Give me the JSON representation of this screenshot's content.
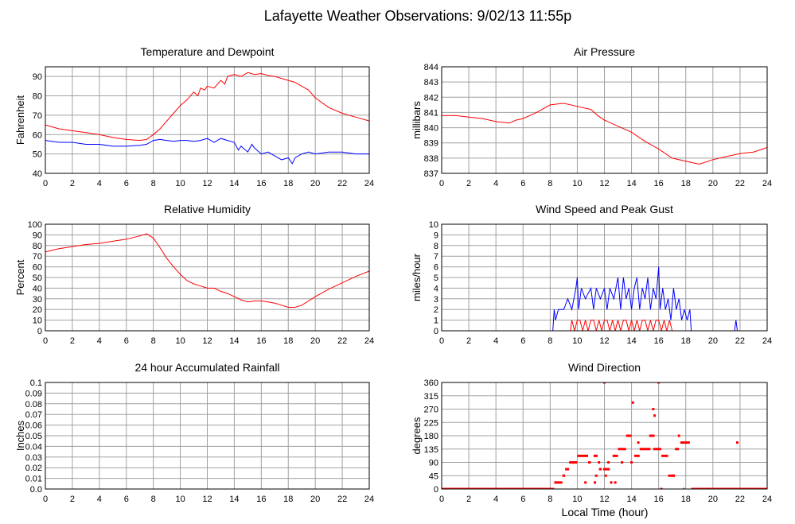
{
  "page": {
    "title": "Lafayette Weather Observations: 9/02/13 11:55p"
  },
  "chart_data": [
    {
      "id": "temp",
      "type": "line",
      "title": "Temperature and Dewpoint",
      "xlabel": "",
      "ylabel": "Fahrenheit",
      "xlim": [
        0,
        24
      ],
      "ylim": [
        40,
        95
      ],
      "yticks": [
        40,
        50,
        60,
        70,
        80,
        90
      ],
      "xticks": [
        0,
        2,
        4,
        6,
        8,
        10,
        12,
        14,
        16,
        18,
        20,
        22,
        24
      ],
      "series": [
        {
          "color": "#ff0000",
          "x": [
            0,
            1,
            2,
            3,
            4,
            5,
            6,
            7,
            7.5,
            8,
            8.5,
            9,
            9.5,
            10,
            10.5,
            11,
            11.3,
            11.5,
            11.8,
            12,
            12.5,
            13,
            13.3,
            13.5,
            14,
            14.5,
            15,
            15.5,
            16,
            16.5,
            17,
            17.5,
            18,
            18.5,
            19,
            19.5,
            20,
            21,
            22,
            23,
            24
          ],
          "y": [
            65,
            63,
            62,
            61,
            60,
            58.5,
            57.5,
            57,
            57.5,
            60,
            63,
            67,
            71,
            75,
            78,
            82,
            80,
            84,
            83,
            85,
            84,
            88,
            86,
            90,
            91,
            90,
            92,
            91,
            91.5,
            90.5,
            90,
            89,
            88,
            87,
            85,
            83,
            79,
            74,
            71,
            69,
            67
          ]
        },
        {
          "color": "#0000ff",
          "x": [
            0,
            1,
            2,
            3,
            4,
            5,
            6,
            7,
            7.5,
            8,
            8.5,
            9,
            9.5,
            10,
            10.5,
            11,
            11.5,
            12,
            12.5,
            13,
            13.5,
            14,
            14.3,
            14.5,
            15,
            15.3,
            15.5,
            16,
            16.5,
            17,
            17.5,
            18,
            18.3,
            18.5,
            19,
            19.5,
            20,
            21,
            22,
            23,
            24
          ],
          "y": [
            57,
            56,
            56,
            55,
            55,
            54,
            54,
            54.5,
            55,
            57,
            57.5,
            57,
            56.5,
            57,
            57,
            56.5,
            57,
            58,
            56,
            58,
            57,
            56,
            52,
            54,
            51,
            55,
            53,
            50,
            51,
            49,
            47,
            48,
            45,
            48,
            50,
            51,
            50,
            51,
            51,
            50,
            50
          ]
        }
      ]
    },
    {
      "id": "pressure",
      "type": "line",
      "title": "Air Pressure",
      "xlabel": "",
      "ylabel": "millibars",
      "xlim": [
        0,
        24
      ],
      "ylim": [
        837,
        844
      ],
      "yticks": [
        837,
        838,
        839,
        840,
        841,
        842,
        843,
        844
      ],
      "xticks": [
        0,
        2,
        4,
        6,
        8,
        10,
        12,
        14,
        16,
        18,
        20,
        22,
        24
      ],
      "series": [
        {
          "color": "#ff0000",
          "x": [
            0,
            1,
            2,
            3,
            4,
            5,
            5.5,
            6,
            7,
            8,
            9,
            10,
            11,
            11.5,
            12,
            13,
            14,
            15,
            16,
            17,
            18,
            19,
            20,
            21,
            22,
            23,
            24
          ],
          "y": [
            840.8,
            840.8,
            840.7,
            840.6,
            840.4,
            840.3,
            840.5,
            840.6,
            841.0,
            841.5,
            841.6,
            841.4,
            841.2,
            840.8,
            840.5,
            840.1,
            839.7,
            839.1,
            838.6,
            838.0,
            837.8,
            837.6,
            837.9,
            838.1,
            838.3,
            838.4,
            838.7
          ]
        }
      ]
    },
    {
      "id": "humidity",
      "type": "line",
      "title": "Relative Humidity",
      "xlabel": "",
      "ylabel": "Percent",
      "xlim": [
        0,
        24
      ],
      "ylim": [
        0,
        100
      ],
      "yticks": [
        0,
        10,
        20,
        30,
        40,
        50,
        60,
        70,
        80,
        90,
        100
      ],
      "xticks": [
        0,
        2,
        4,
        6,
        8,
        10,
        12,
        14,
        16,
        18,
        20,
        22,
        24
      ],
      "series": [
        {
          "color": "#ff0000",
          "x": [
            0,
            1,
            2,
            3,
            4,
            5,
            6,
            7,
            7.5,
            8,
            8.5,
            9,
            9.5,
            10,
            10.5,
            11,
            11.5,
            12,
            12.5,
            13,
            13.5,
            14,
            14.5,
            15,
            15.5,
            16,
            16.5,
            17,
            17.5,
            18,
            18.5,
            19,
            19.5,
            20,
            21,
            22,
            23,
            24
          ],
          "y": [
            74,
            77,
            79,
            81,
            82,
            84,
            86,
            89,
            91,
            87,
            78,
            68,
            60,
            53,
            47,
            44,
            42,
            40,
            40,
            37,
            35,
            32,
            29,
            27,
            28,
            28,
            27,
            26,
            24,
            22,
            22,
            24,
            28,
            32,
            39,
            45,
            51,
            56
          ]
        }
      ]
    },
    {
      "id": "wind",
      "type": "line",
      "title": "Wind Speed and Peak Gust",
      "xlabel": "",
      "ylabel": "miles/hour",
      "xlim": [
        0,
        24
      ],
      "ylim": [
        0,
        10
      ],
      "yticks": [
        0,
        1,
        2,
        3,
        4,
        5,
        6,
        7,
        8,
        9,
        10
      ],
      "xticks": [
        0,
        2,
        4,
        6,
        8,
        10,
        12,
        14,
        16,
        18,
        20,
        22,
        24
      ],
      "series": [
        {
          "color": "#0000ff",
          "x": [
            0,
            8.2,
            8.3,
            8.4,
            8.6,
            9,
            9.3,
            9.6,
            9.9,
            10,
            10.1,
            10.3,
            10.6,
            11,
            11.2,
            11.4,
            11.7,
            12,
            12.2,
            12.4,
            12.7,
            13,
            13.2,
            13.4,
            13.6,
            13.8,
            14,
            14.2,
            14.4,
            14.6,
            14.8,
            15,
            15.2,
            15.4,
            15.6,
            15.8,
            16,
            16.1,
            16.3,
            16.5,
            16.7,
            16.9,
            17.1,
            17.3,
            17.5,
            17.7,
            17.9,
            18.1,
            18.3,
            18.4,
            21.6,
            21.7,
            21.8,
            24
          ],
          "y": [
            0,
            0,
            2,
            1,
            2,
            2,
            3,
            2,
            4,
            5,
            2,
            4,
            3,
            4,
            2,
            4,
            3,
            4,
            2,
            4,
            3,
            5,
            2,
            5,
            3,
            4,
            2,
            4,
            5,
            2,
            4,
            3,
            5,
            2,
            4,
            3,
            6,
            2,
            4,
            2,
            3,
            1,
            4,
            2,
            3,
            1,
            2,
            1,
            2,
            0,
            0,
            1,
            0,
            0
          ]
        },
        {
          "color": "#ff0000",
          "x": [
            0,
            9.5,
            9.6,
            9.8,
            10,
            10.2,
            10.4,
            10.6,
            10.8,
            11,
            11.2,
            11.4,
            11.6,
            11.8,
            12,
            12.2,
            12.4,
            12.6,
            12.8,
            13,
            13.2,
            13.4,
            13.6,
            13.8,
            14,
            14.2,
            14.4,
            14.6,
            14.8,
            15,
            15.2,
            15.4,
            15.6,
            15.8,
            16,
            16.2,
            16.4,
            16.6,
            16.8,
            17,
            24
          ],
          "y": [
            0,
            0,
            1,
            0,
            1,
            1,
            0,
            1,
            0,
            1,
            1,
            0,
            1,
            0,
            1,
            1,
            0,
            1,
            0,
            1,
            0,
            1,
            1,
            0,
            1,
            0,
            1,
            0,
            1,
            1,
            0,
            1,
            0,
            1,
            1,
            0,
            1,
            0,
            1,
            0,
            0
          ]
        }
      ]
    },
    {
      "id": "rain",
      "type": "line",
      "title": "24 hour Accumulated Rainfall",
      "xlabel": "",
      "ylabel": "Inches",
      "xlim": [
        0,
        24
      ],
      "ylim": [
        0,
        0.1
      ],
      "yticks": [
        0,
        0.01,
        0.02,
        0.03,
        0.04,
        0.05,
        0.06,
        0.07,
        0.08,
        0.09,
        0.1
      ],
      "ytick_labels": [
        "0.0",
        "0.01",
        "0.02",
        "0.03",
        "0.04",
        "0.05",
        "0.06",
        "0.07",
        "0.08",
        "0.09",
        "0.1"
      ],
      "xticks": [
        0,
        2,
        4,
        6,
        8,
        10,
        12,
        14,
        16,
        18,
        20,
        22,
        24
      ],
      "series": [
        {
          "color": "#ff0000",
          "x": [
            0,
            24
          ],
          "y": [
            0,
            0
          ]
        }
      ]
    },
    {
      "id": "direction",
      "type": "scatter",
      "title": "Wind Direction",
      "xlabel": "Local Time (hour)",
      "ylabel": "degrees",
      "xlim": [
        0,
        24
      ],
      "ylim": [
        0,
        360
      ],
      "yticks": [
        0,
        45,
        90,
        135,
        180,
        225,
        270,
        315,
        360
      ],
      "xticks": [
        0,
        2,
        4,
        6,
        8,
        10,
        12,
        14,
        16,
        18,
        20,
        22,
        24
      ],
      "series": [
        {
          "color": "#ff0000",
          "segments": [
            [
              0,
              8.3,
              0
            ],
            [
              8.3,
              8.9,
              22
            ],
            [
              8.9,
              9.1,
              45
            ],
            [
              9.1,
              9.4,
              67
            ],
            [
              9.4,
              10,
              90
            ],
            [
              10,
              10.8,
              112
            ],
            [
              10.8,
              11,
              90
            ],
            [
              11.2,
              11.5,
              112
            ],
            [
              11.6,
              11.8,
              67
            ],
            [
              11.9,
              12.4,
              67
            ],
            [
              12.6,
              13,
              112
            ],
            [
              13,
              13.6,
              135
            ],
            [
              13.6,
              14,
              180
            ],
            [
              14.2,
              14.6,
              112
            ],
            [
              14.6,
              15.4,
              135
            ],
            [
              15.3,
              15.7,
              180
            ],
            [
              15.6,
              16.2,
              135
            ],
            [
              16.2,
              16.7,
              112
            ],
            [
              16.7,
              17.2,
              45
            ],
            [
              17.2,
              17.5,
              135
            ],
            [
              17.6,
              18.3,
              157
            ],
            [
              17.8,
              17.9,
              0
            ],
            [
              18.4,
              24,
              0
            ]
          ],
          "points": [
            [
              10.6,
              22
            ],
            [
              11.3,
              22
            ],
            [
              11.6,
              90
            ],
            [
              12,
              360
            ],
            [
              12.3,
              90
            ],
            [
              12.5,
              22
            ],
            [
              12.8,
              22
            ],
            [
              13.3,
              90
            ],
            [
              14,
              90
            ],
            [
              14.1,
              292
            ],
            [
              14.5,
              157
            ],
            [
              15.6,
              270
            ],
            [
              15.7,
              248
            ],
            [
              16,
              360
            ],
            [
              16.2,
              0
            ],
            [
              17.1,
              45
            ],
            [
              17.5,
              180
            ],
            [
              21.8,
              157
            ],
            [
              11.4,
              45
            ],
            [
              12.1,
              45
            ]
          ]
        }
      ]
    }
  ]
}
